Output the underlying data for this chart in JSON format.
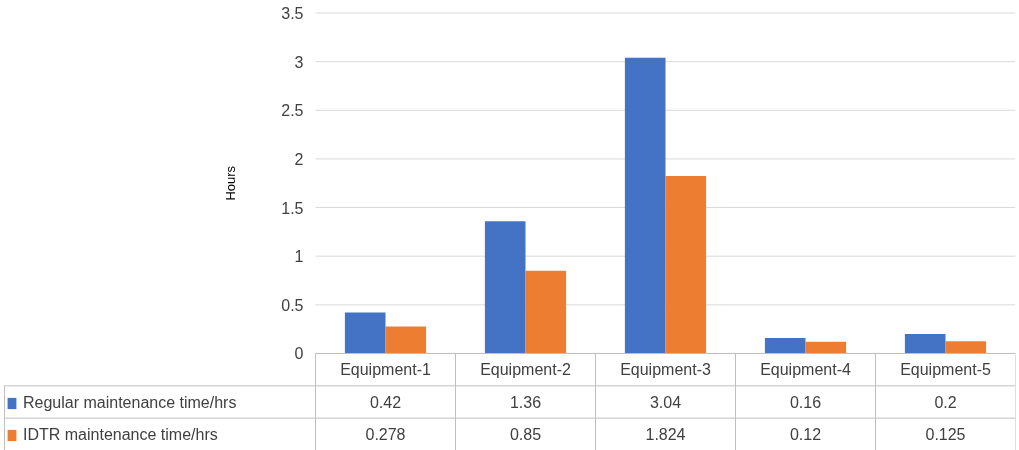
{
  "chart_data": {
    "type": "bar",
    "ylabel": "Hours",
    "categories": [
      "Equipment-1",
      "Equipment-2",
      "Equipment-3",
      "Equipment-4",
      "Equipment-5"
    ],
    "series": [
      {
        "name": "Regular maintenance time/hrs",
        "color": "#4472c4",
        "values": [
          0.42,
          1.36,
          3.04,
          0.16,
          0.2
        ]
      },
      {
        "name": "IDTR maintenance time/hrs",
        "color": "#ed7d31",
        "values": [
          0.278,
          0.85,
          1.824,
          0.12,
          0.125
        ]
      }
    ],
    "ylim": [
      0,
      3.5
    ],
    "yticks": [
      0,
      0.5,
      1,
      {
        "value": 1.5,
        "label": "1.5"
      },
      2,
      {
        "value": 2.5,
        "label": "2.5"
      },
      3,
      {
        "value": 3.5,
        "label": "3.5"
      }
    ],
    "grid": "y",
    "legend": "bottom",
    "data_labels": true
  }
}
